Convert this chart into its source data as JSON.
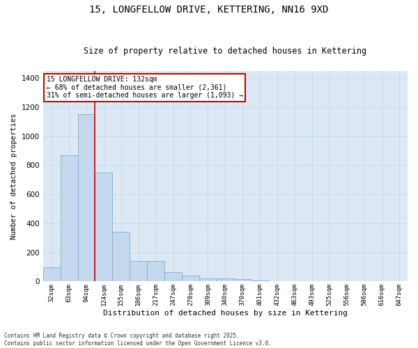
{
  "title": "15, LONGFELLOW DRIVE, KETTERING, NN16 9XD",
  "subtitle": "Size of property relative to detached houses in Kettering",
  "xlabel": "Distribution of detached houses by size in Kettering",
  "ylabel": "Number of detached properties",
  "categories": [
    "32sqm",
    "63sqm",
    "94sqm",
    "124sqm",
    "155sqm",
    "186sqm",
    "217sqm",
    "247sqm",
    "278sqm",
    "309sqm",
    "340sqm",
    "370sqm",
    "401sqm",
    "432sqm",
    "463sqm",
    "493sqm",
    "525sqm",
    "556sqm",
    "586sqm",
    "616sqm",
    "647sqm"
  ],
  "values": [
    100,
    870,
    1150,
    750,
    340,
    140,
    140,
    65,
    40,
    20,
    20,
    15,
    5,
    2,
    0,
    0,
    0,
    0,
    0,
    0,
    0
  ],
  "bar_color": "#c5d8ee",
  "bar_edge_color": "#7bafd4",
  "grid_color": "#c8d8e8",
  "background_color": "#dce9f5",
  "vline_color": "#cc0000",
  "vline_pos": 2.5,
  "annotation_title": "15 LONGFELLOW DRIVE: 132sqm",
  "annotation_line1": "← 68% of detached houses are smaller (2,361)",
  "annotation_line2": "31% of semi-detached houses are larger (1,093) →",
  "annotation_box_facecolor": "#ffffff",
  "annotation_box_edgecolor": "#cc0000",
  "footer_line1": "Contains HM Land Registry data © Crown copyright and database right 2025.",
  "footer_line2": "Contains public sector information licensed under the Open Government Licence v3.0.",
  "ylim": [
    0,
    1450
  ],
  "yticks": [
    0,
    200,
    400,
    600,
    800,
    1000,
    1200,
    1400
  ],
  "figsize": [
    6.0,
    5.0
  ],
  "dpi": 100
}
